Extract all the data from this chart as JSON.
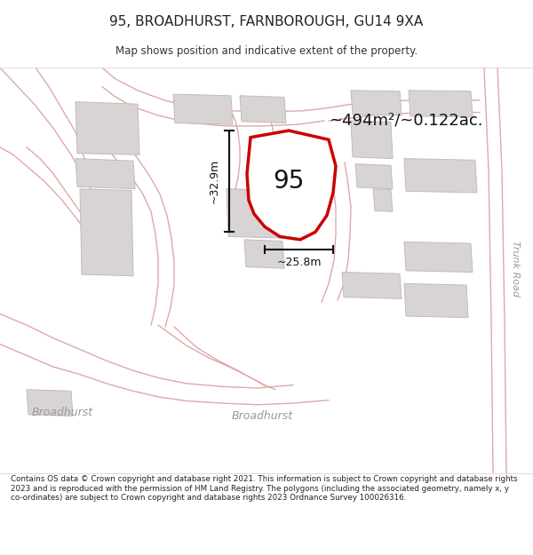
{
  "title": "95, BROADHURST, FARNBOROUGH, GU14 9XA",
  "subtitle": "Map shows position and indicative extent of the property.",
  "footer": "Contains OS data © Crown copyright and database right 2021. This information is subject to Crown copyright and database rights 2023 and is reproduced with the permission of HM Land Registry. The polygons (including the associated geometry, namely x, y co-ordinates) are subject to Crown copyright and database rights 2023 Ordnance Survey 100026316.",
  "area_label": "~494m²/~0.122ac.",
  "number_label": "95",
  "dim_horiz": "~25.8m",
  "dim_vert": "~32.9m",
  "bg": "#ffffff",
  "map_bg": "#f7f5f5",
  "road_line": "#e8a8a8",
  "road_fill": "#f0e8e8",
  "building_fill": "#d8d4d4",
  "building_edge": "#c0bcbc",
  "highlight_color": "#cc0000",
  "dim_color": "#111111",
  "label_color": "#888888",
  "road_label_color": "#999999"
}
